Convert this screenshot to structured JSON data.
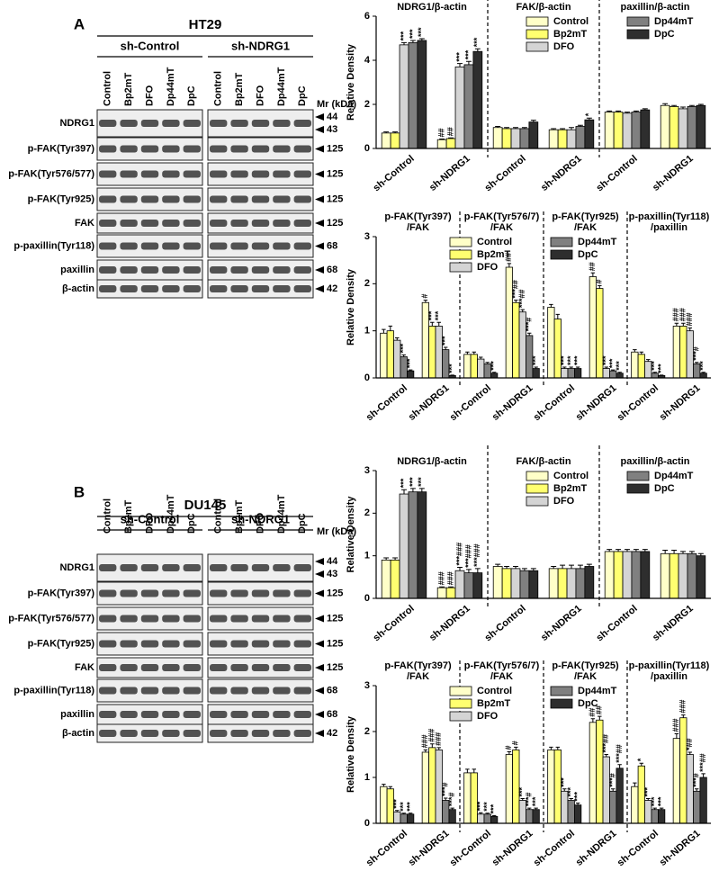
{
  "panels": [
    {
      "label": "A",
      "blot": {
        "title": "HT29",
        "groups": [
          "sh-Control",
          "sh-NDRG1"
        ],
        "lanes": [
          "Control",
          "Bp2mT",
          "DFO",
          "Dp44mT",
          "DpC"
        ],
        "mr_label": "Mr (kDa)",
        "rows": [
          {
            "label": "NDRG1",
            "mr": [
              "44",
              "43"
            ]
          },
          {
            "label": "p-FAK(Tyr397)",
            "mr": [
              "125"
            ]
          },
          {
            "label": "p-FAK(Tyr576/577)",
            "mr": [
              "125"
            ]
          },
          {
            "label": "p-FAK(Tyr925)",
            "mr": [
              "125"
            ]
          },
          {
            "label": "FAK",
            "mr": [
              "125"
            ]
          },
          {
            "label": "p-paxillin(Tyr118)",
            "mr": [
              "68"
            ]
          },
          {
            "label": "paxillin",
            "mr": [
              "68"
            ]
          },
          {
            "label": "β-actin",
            "mr": [
              "42"
            ]
          }
        ]
      }
    },
    {
      "label": "B",
      "blot": {
        "title": "DU145",
        "groups": [
          "sh-Control",
          "sh-NDRG1"
        ],
        "lanes": [
          "Control",
          "Bp2mT",
          "DFO",
          "Dp44mT",
          "DpC"
        ],
        "mr_label": "Mr (kDa)",
        "rows": [
          {
            "label": "NDRG1",
            "mr": [
              "44",
              "43"
            ]
          },
          {
            "label": "p-FAK(Tyr397)",
            "mr": [
              "125"
            ]
          },
          {
            "label": "p-FAK(Tyr576/577)",
            "mr": [
              "125"
            ]
          },
          {
            "label": "p-FAK(Tyr925)",
            "mr": [
              "125"
            ]
          },
          {
            "label": "FAK",
            "mr": [
              "125"
            ]
          },
          {
            "label": "p-paxillin(Tyr118)",
            "mr": [
              "68"
            ]
          },
          {
            "label": "paxillin",
            "mr": [
              "68"
            ]
          },
          {
            "label": "β-actin",
            "mr": [
              "42"
            ]
          }
        ]
      }
    }
  ],
  "chart_data": [
    {
      "type": "bar",
      "ylabel": "Relative Density",
      "legend": "upper right",
      "sections": [
        [
          "NDRG1/β-actin"
        ],
        [
          "FAK/β-actin"
        ],
        [
          "paxillin/β-actin"
        ]
      ],
      "categories": [
        "sh-Control",
        "sh-NDRG1",
        "sh-Control",
        "sh-NDRG1",
        "sh-Control",
        "sh-NDRG1"
      ],
      "ylim": [
        0,
        6
      ],
      "yticks": [
        0,
        2,
        4,
        6
      ],
      "series": [
        {
          "name": "Control",
          "color": "#ffffc8",
          "values": [
            0.7,
            0.4,
            0.95,
            0.85,
            1.65,
            1.95
          ],
          "errors": [
            0.05,
            0.03,
            0.05,
            0.05,
            0.05,
            0.08
          ],
          "annotations": [
            null,
            "##",
            null,
            null,
            null,
            null
          ]
        },
        {
          "name": "Bp2mT",
          "color": "#ffff70",
          "values": [
            0.7,
            0.45,
            0.9,
            0.85,
            1.65,
            1.9
          ],
          "errors": [
            0.05,
            0.03,
            0.05,
            0.05,
            0.05,
            0.05
          ],
          "annotations": [
            null,
            "##",
            null,
            null,
            null,
            null
          ]
        },
        {
          "name": "DFO",
          "color": "#d4d4d4",
          "values": [
            4.7,
            3.7,
            0.9,
            0.85,
            1.6,
            1.8
          ],
          "errors": [
            0.1,
            0.15,
            0.05,
            0.1,
            0.05,
            0.08
          ],
          "annotations": [
            "***",
            "***",
            null,
            null,
            null,
            null
          ]
        },
        {
          "name": "Dp44mT",
          "color": "#808080",
          "values": [
            4.8,
            3.8,
            0.9,
            1.0,
            1.65,
            1.9
          ],
          "errors": [
            0.1,
            0.15,
            0.05,
            0.05,
            0.05,
            0.05
          ],
          "annotations": [
            "***",
            "***",
            null,
            null,
            null,
            null
          ]
        },
        {
          "name": "DpC",
          "color": "#2e2e2e",
          "values": [
            4.9,
            4.4,
            1.2,
            1.3,
            1.75,
            1.95
          ],
          "errors": [
            0.08,
            0.12,
            0.08,
            0.08,
            0.05,
            0.05
          ],
          "annotations": [
            "***",
            "***",
            null,
            "*",
            null,
            null
          ]
        }
      ]
    },
    {
      "type": "bar",
      "ylabel": "Relative Density",
      "legend": "upper center",
      "sections": [
        [
          "p-FAK(Tyr397)",
          "/FAK"
        ],
        [
          "p-FAK(Tyr576/7)",
          "/FAK"
        ],
        [
          "p-FAK(Tyr925)",
          "/FAK"
        ],
        [
          "p-paxillin(Tyr118)",
          "/paxillin"
        ]
      ],
      "categories": [
        "sh-Control",
        "sh-NDRG1",
        "sh-Control",
        "sh-NDRG1",
        "sh-Control",
        "sh-NDRG1",
        "sh-Control",
        "sh-NDRG1"
      ],
      "ylim": [
        0,
        3
      ],
      "yticks": [
        0,
        1,
        2,
        3
      ],
      "series": [
        {
          "name": "Control",
          "color": "#ffffc8",
          "values": [
            0.95,
            1.6,
            0.5,
            2.35,
            1.5,
            2.15,
            0.55,
            1.1
          ],
          "errors": [
            0.08,
            0.05,
            0.05,
            0.08,
            0.06,
            0.08,
            0.05,
            0.06
          ],
          "annotations": [
            null,
            "#",
            null,
            "##",
            null,
            "##",
            null,
            "###"
          ]
        },
        {
          "name": "Bp2mT",
          "color": "#ffff70",
          "values": [
            1.0,
            1.1,
            0.5,
            1.6,
            1.25,
            1.9,
            0.5,
            1.1
          ],
          "errors": [
            0.1,
            0.08,
            0.05,
            0.05,
            0.1,
            0.06,
            0.05,
            0.06
          ],
          "annotations": [
            null,
            "***",
            null,
            "***##",
            null,
            "#",
            null,
            "###"
          ]
        },
        {
          "name": "DFO",
          "color": "#d4d4d4",
          "values": [
            0.8,
            1.1,
            0.4,
            1.4,
            0.2,
            0.2,
            0.35,
            1.0
          ],
          "errors": [
            0.05,
            0.08,
            0.04,
            0.05,
            0.03,
            0.03,
            0.04,
            0.06
          ],
          "annotations": [
            null,
            "***",
            null,
            "***##",
            "***",
            "***",
            null,
            "###"
          ]
        },
        {
          "name": "Dp44mT",
          "color": "#808080",
          "values": [
            0.45,
            0.6,
            0.3,
            0.9,
            0.2,
            0.15,
            0.1,
            0.3
          ],
          "errors": [
            0.04,
            0.05,
            0.03,
            0.05,
            0.03,
            0.02,
            0.02,
            0.03
          ],
          "annotations": [
            "***",
            "***",
            null,
            "***#",
            "***",
            "***",
            "***",
            "***#"
          ]
        },
        {
          "name": "DpC",
          "color": "#2e2e2e",
          "values": [
            0.15,
            0.05,
            0.1,
            0.2,
            0.2,
            0.1,
            0.05,
            0.1
          ],
          "errors": [
            0.02,
            0.01,
            0.02,
            0.03,
            0.03,
            0.02,
            0.01,
            0.02
          ],
          "annotations": [
            "***",
            "***",
            "***",
            "***",
            "***",
            "***",
            "***",
            "***"
          ]
        }
      ]
    },
    {
      "type": "bar",
      "ylabel": "Relative Density",
      "legend": "upper right",
      "sections": [
        [
          "NDRG1/β-actin"
        ],
        [
          "FAK/β-actin"
        ],
        [
          "paxillin/β-actin"
        ]
      ],
      "categories": [
        "sh-Control",
        "sh-NDRG1",
        "sh-Control",
        "sh-NDRG1",
        "sh-Control",
        "sh-NDRG1"
      ],
      "ylim": [
        0,
        3
      ],
      "yticks": [
        0,
        1,
        2,
        3
      ],
      "series": [
        {
          "name": "Control",
          "color": "#ffffc8",
          "values": [
            0.9,
            0.25,
            0.75,
            0.7,
            1.1,
            1.05
          ],
          "errors": [
            0.05,
            0.02,
            0.05,
            0.05,
            0.05,
            0.08
          ],
          "annotations": [
            null,
            "###",
            null,
            null,
            null,
            null
          ]
        },
        {
          "name": "Bp2mT",
          "color": "#ffff70",
          "values": [
            0.9,
            0.25,
            0.7,
            0.7,
            1.1,
            1.05
          ],
          "errors": [
            0.05,
            0.02,
            0.05,
            0.08,
            0.05,
            0.08
          ],
          "annotations": [
            null,
            "###",
            null,
            null,
            null,
            null
          ]
        },
        {
          "name": "DFO",
          "color": "#d4d4d4",
          "values": [
            2.45,
            0.65,
            0.7,
            0.7,
            1.1,
            1.05
          ],
          "errors": [
            0.1,
            0.08,
            0.05,
            0.08,
            0.05,
            0.05
          ],
          "annotations": [
            "***",
            "***###",
            null,
            null,
            null,
            null
          ]
        },
        {
          "name": "Dp44mT",
          "color": "#808080",
          "values": [
            2.5,
            0.6,
            0.65,
            0.7,
            1.1,
            1.05
          ],
          "errors": [
            0.08,
            0.08,
            0.05,
            0.08,
            0.05,
            0.05
          ],
          "annotations": [
            "***",
            "***###",
            null,
            null,
            null,
            null
          ]
        },
        {
          "name": "DpC",
          "color": "#2e2e2e",
          "values": [
            2.5,
            0.6,
            0.65,
            0.75,
            1.1,
            1.0
          ],
          "errors": [
            0.08,
            0.1,
            0.05,
            0.05,
            0.05,
            0.05
          ],
          "annotations": [
            "***",
            "***###",
            null,
            null,
            null,
            null
          ]
        }
      ]
    },
    {
      "type": "bar",
      "ylabel": "Relative Density",
      "legend": "upper center",
      "sections": [
        [
          "p-FAK(Tyr397)",
          "/FAK"
        ],
        [
          "p-FAK(Tyr576/7)",
          "/FAK"
        ],
        [
          "p-FAK(Tyr925)",
          "/FAK"
        ],
        [
          "p-paxillin(Tyr118)",
          "/paxillin"
        ]
      ],
      "categories": [
        "sh-Control",
        "sh-NDRG1",
        "sh-Control",
        "sh-NDRG1",
        "sh-Control",
        "sh-NDRG1",
        "sh-Control",
        "sh-NDRG1"
      ],
      "ylim": [
        0,
        3
      ],
      "yticks": [
        0,
        1,
        2,
        3
      ],
      "series": [
        {
          "name": "Control",
          "color": "#ffffc8",
          "values": [
            0.8,
            1.55,
            1.1,
            1.5,
            1.6,
            2.2,
            0.8,
            1.85
          ],
          "errors": [
            0.05,
            0.05,
            0.08,
            0.06,
            0.06,
            0.08,
            0.08,
            0.1
          ],
          "annotations": [
            null,
            "###",
            null,
            "#",
            null,
            "##",
            null,
            "###"
          ]
        },
        {
          "name": "Bp2mT",
          "color": "#ffff70",
          "values": [
            0.75,
            1.65,
            1.1,
            1.6,
            1.6,
            2.25,
            1.25,
            2.3
          ],
          "errors": [
            0.05,
            0.08,
            0.08,
            0.06,
            0.06,
            0.08,
            0.06,
            0.06
          ],
          "annotations": [
            null,
            "###",
            null,
            "#",
            null,
            "##",
            "*",
            "###"
          ]
        },
        {
          "name": "DFO",
          "color": "#d4d4d4",
          "values": [
            0.25,
            1.6,
            0.2,
            0.5,
            0.7,
            1.45,
            0.5,
            1.5
          ],
          "errors": [
            0.03,
            0.05,
            0.03,
            0.04,
            0.05,
            0.05,
            0.04,
            0.05
          ],
          "annotations": [
            "***",
            "###",
            "***",
            "***",
            "***",
            "***##",
            "***",
            "*##"
          ]
        },
        {
          "name": "Dp44mT",
          "color": "#808080",
          "values": [
            0.2,
            0.5,
            0.2,
            0.3,
            0.5,
            0.7,
            0.3,
            0.7
          ],
          "errors": [
            0.02,
            0.05,
            0.02,
            0.03,
            0.04,
            0.05,
            0.03,
            0.05
          ],
          "annotations": [
            "***",
            "***#",
            "***",
            "***#",
            "***",
            "***#",
            "***",
            "***#"
          ]
        },
        {
          "name": "DpC",
          "color": "#2e2e2e",
          "values": [
            0.2,
            0.3,
            0.15,
            0.3,
            0.4,
            1.2,
            0.3,
            1.0
          ],
          "errors": [
            0.02,
            0.03,
            0.02,
            0.03,
            0.04,
            0.08,
            0.03,
            0.08
          ],
          "annotations": [
            "***",
            "***#",
            "***",
            "***",
            "***",
            "***##",
            "***",
            "***##"
          ]
        }
      ]
    }
  ]
}
